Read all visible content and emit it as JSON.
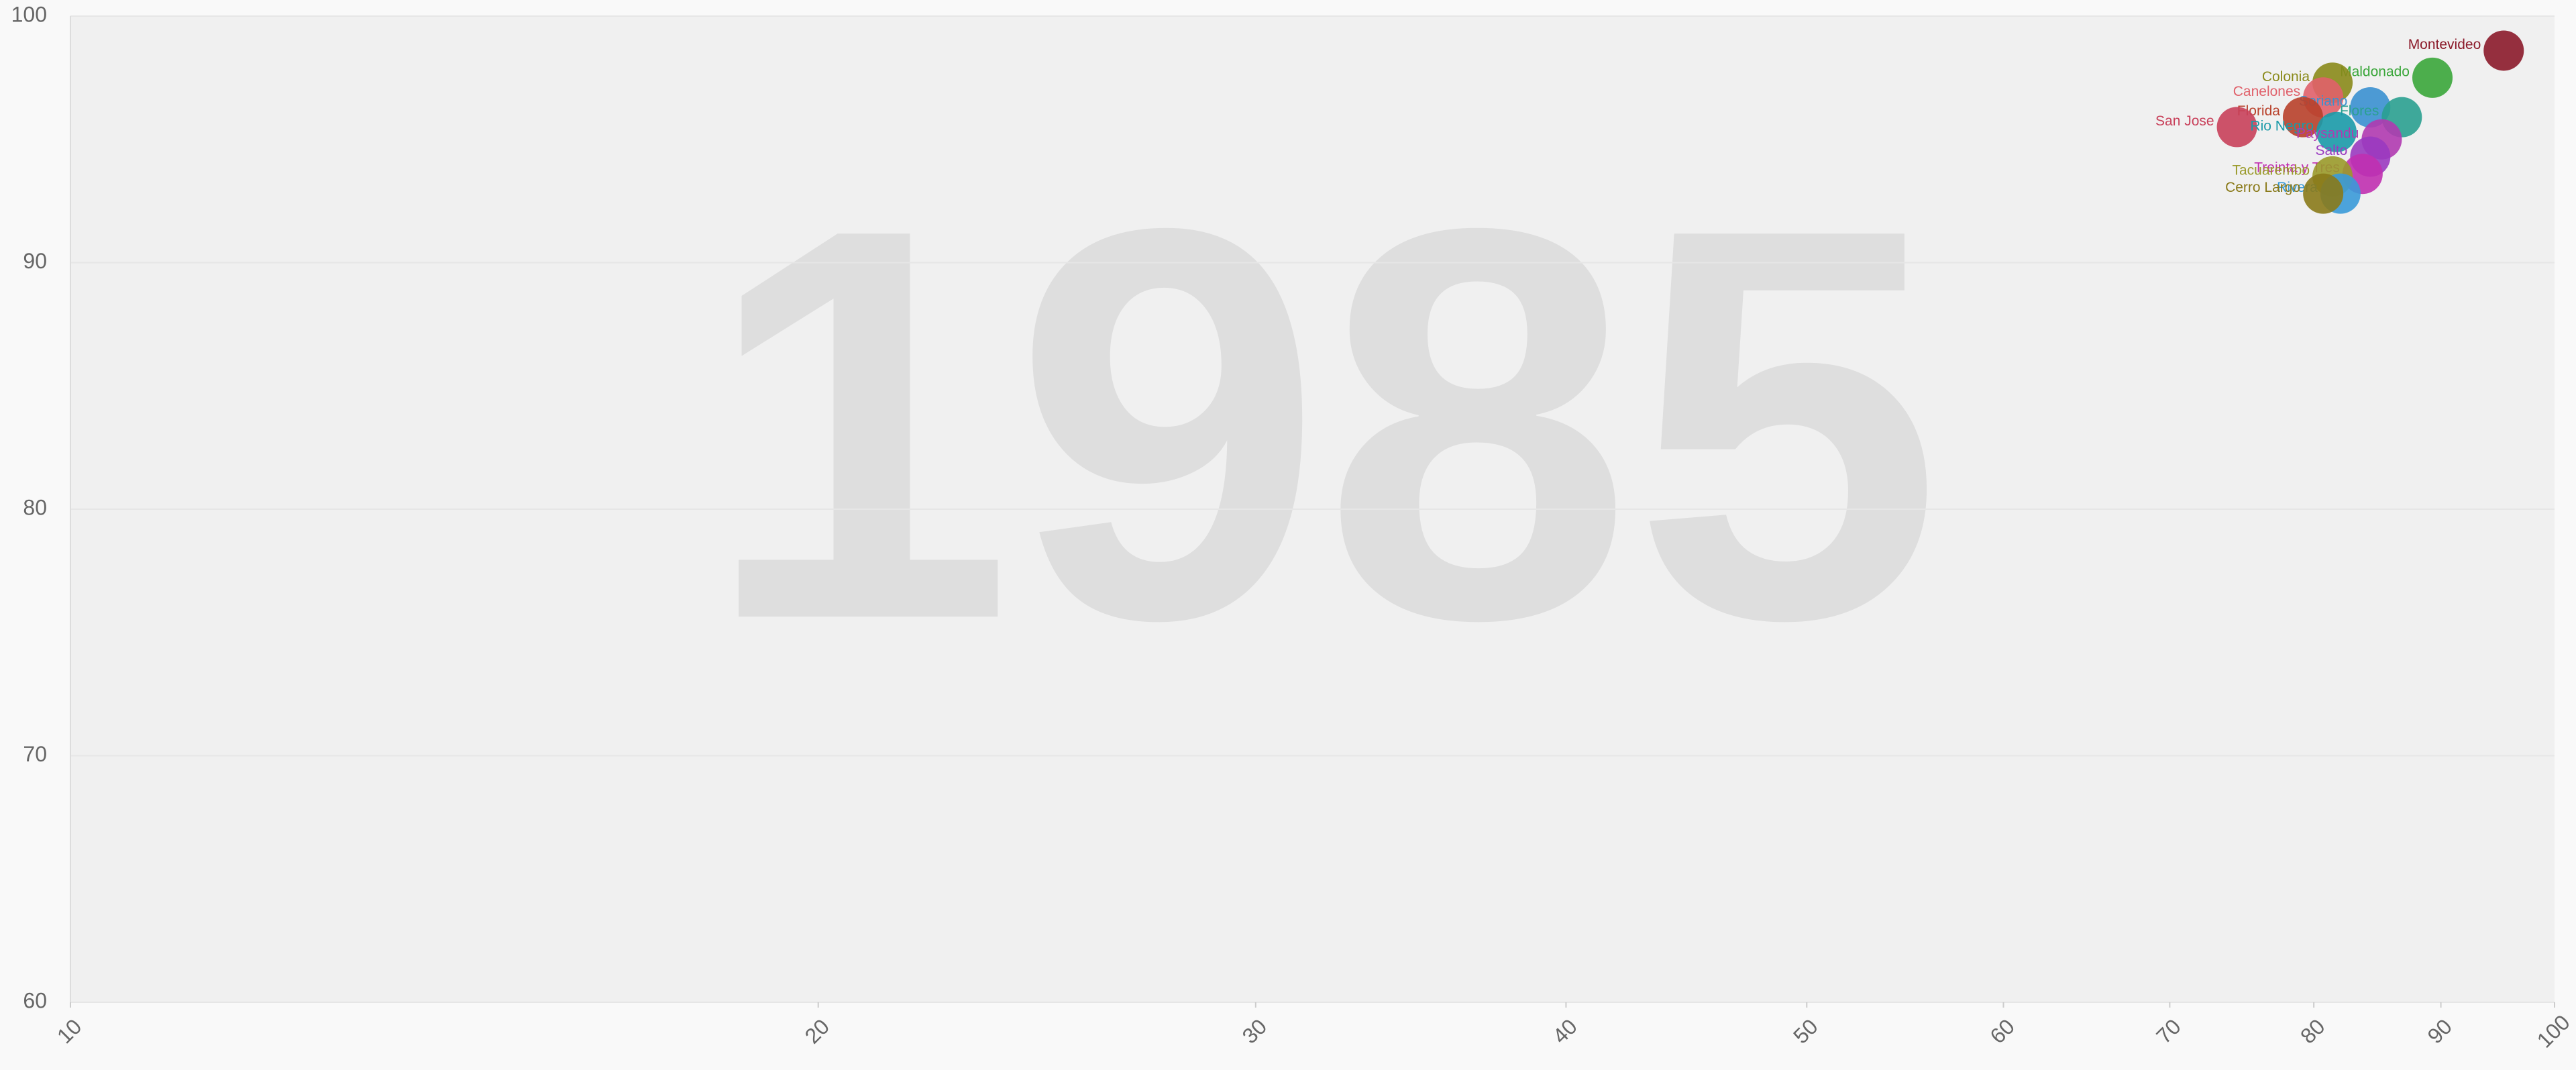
{
  "chart_data": {
    "type": "scatter",
    "watermark": "1985",
    "log_x": true,
    "grid": true,
    "xlim": [
      10,
      100
    ],
    "ylim": [
      60,
      100
    ],
    "xticks": [
      10,
      20,
      30,
      40,
      50,
      60,
      70,
      80,
      90,
      100
    ],
    "yticks": [
      60,
      70,
      80,
      90,
      100
    ],
    "series": [
      {
        "name": "Montevideo",
        "color": "#8b1a2a",
        "x": [
          95.4
        ],
        "values": [
          98.6
        ]
      },
      {
        "name": "Maldonado",
        "color": "#3aa63a",
        "x": [
          89.3
        ],
        "values": [
          97.5
        ]
      },
      {
        "name": "Colonia",
        "color": "#8a8a1a",
        "x": [
          81.4
        ],
        "values": [
          97.3
        ]
      },
      {
        "name": "Canelones",
        "color": "#e0606a",
        "x": [
          80.7
        ],
        "values": [
          96.7
        ]
      },
      {
        "name": "Soriano",
        "color": "#3a90d0",
        "x": [
          84.3
        ],
        "values": [
          96.3
        ]
      },
      {
        "name": "Florida",
        "color": "#b8402a",
        "x": [
          79.2
        ],
        "values": [
          95.9
        ]
      },
      {
        "name": "Flores",
        "color": "#2aa090",
        "x": [
          86.8
        ],
        "values": [
          95.9
        ]
      },
      {
        "name": "San Jose",
        "color": "#c8405a",
        "x": [
          74.5
        ],
        "values": [
          95.5
        ]
      },
      {
        "name": "Rio Negro",
        "color": "#1a9aa8",
        "x": [
          81.7
        ],
        "values": [
          95.3
        ]
      },
      {
        "name": "Paysandu",
        "color": "#b03ab0",
        "x": [
          85.2
        ],
        "values": [
          95.0
        ]
      },
      {
        "name": "Salto",
        "color": "#9a3ac0",
        "x": [
          84.3
        ],
        "values": [
          94.3
        ]
      },
      {
        "name": "Treinta y Tres",
        "color": "#c030b0",
        "x": [
          83.7
        ],
        "values": [
          93.6
        ]
      },
      {
        "name": "Tacuarembo",
        "color": "#9a9a2a",
        "x": [
          81.4
        ],
        "values": [
          93.5
        ]
      },
      {
        "name": "Rivera",
        "color": "#3a9ad8",
        "x": [
          82.0
        ],
        "values": [
          92.8
        ]
      },
      {
        "name": "Cerro Largo",
        "color": "#8a7a1a",
        "x": [
          80.7
        ],
        "values": [
          92.8
        ]
      }
    ]
  }
}
